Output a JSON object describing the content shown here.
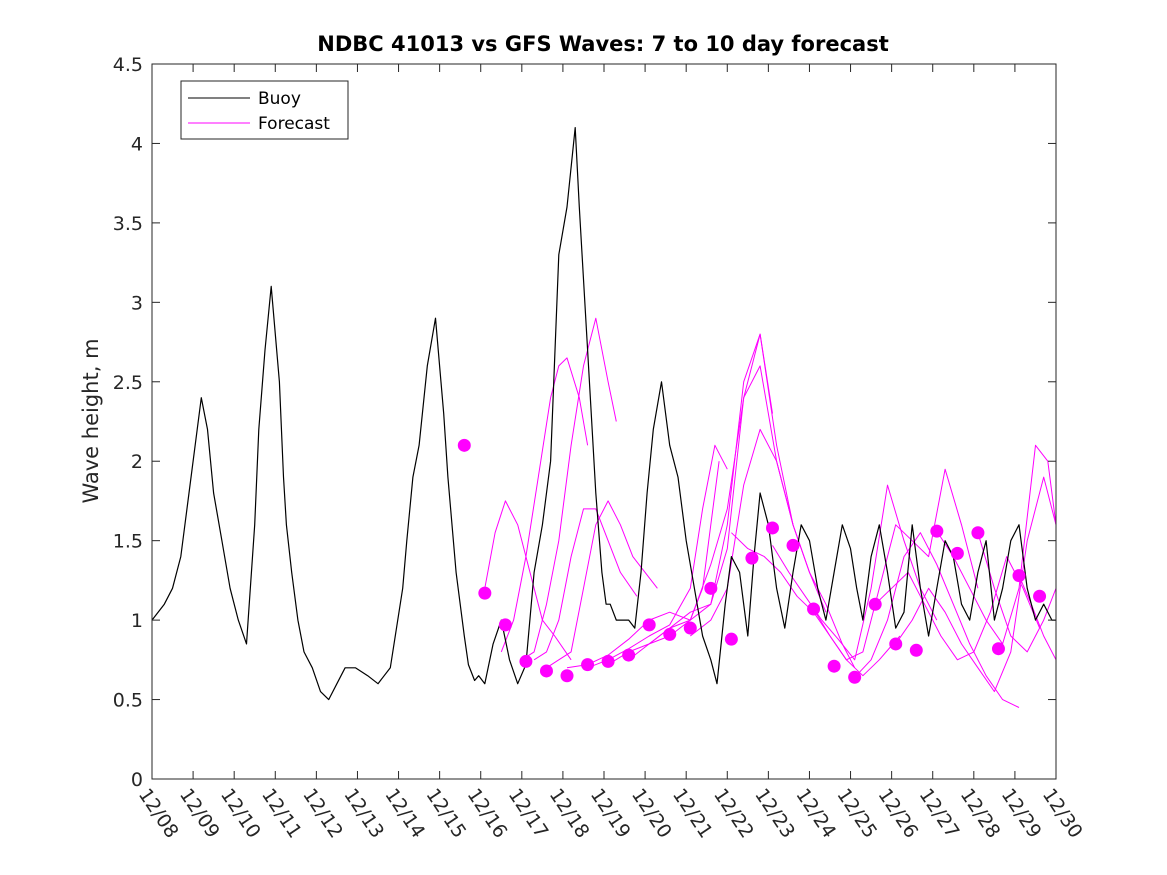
{
  "chart_data": {
    "type": "line",
    "title": "NDBC 41013 vs GFS Waves: 7 to 10 day forecast",
    "xlabel": "",
    "ylabel": "Wave height, m",
    "x_ticks": [
      "12/08",
      "12/09",
      "12/10",
      "12/11",
      "12/12",
      "12/13",
      "12/14",
      "12/15",
      "12/16",
      "12/17",
      "12/18",
      "12/19",
      "12/20",
      "12/21",
      "12/22",
      "12/23",
      "12/24",
      "12/25",
      "12/26",
      "12/27",
      "12/28",
      "12/29",
      "12/30"
    ],
    "xlim": [
      0,
      22
    ],
    "ylim": [
      0,
      4.5
    ],
    "y_ticks": [
      0,
      0.5,
      1,
      1.5,
      2,
      2.5,
      3,
      3.5,
      4,
      4.5
    ],
    "y_tick_labels": [
      "0",
      "0.5",
      "1",
      "1.5",
      "2",
      "2.5",
      "3",
      "3.5",
      "4",
      "4.5"
    ],
    "grid": false,
    "legend": {
      "placement": "top-left",
      "entries": [
        {
          "label": "Buoy",
          "color": "#000000"
        },
        {
          "label": "Forecast",
          "color": "#ff00ff"
        }
      ]
    },
    "series": [
      {
        "name": "Buoy",
        "color": "#000000",
        "x": [
          0,
          0.3,
          0.5,
          0.7,
          0.9,
          1.1,
          1.2,
          1.35,
          1.5,
          1.7,
          1.9,
          2.1,
          2.3,
          2.5,
          2.6,
          2.75,
          2.9,
          3.1,
          3.2,
          3.27,
          3.4,
          3.55,
          3.7,
          3.9,
          4.1,
          4.3,
          4.5,
          4.7,
          4.8,
          4.95,
          5.25,
          5.5,
          5.8,
          6.1,
          6.2,
          6.35,
          6.5,
          6.7,
          6.9,
          7.1,
          7.2,
          7.4,
          7.6,
          7.7,
          7.85,
          7.95,
          8.1,
          8.3,
          8.5,
          8.7,
          8.9,
          9.1,
          9.3,
          9.5,
          9.7,
          9.9,
          10.1,
          10.3,
          10.4,
          10.6,
          10.8,
          10.95,
          11.05,
          11.15,
          11.3,
          11.45,
          11.6,
          11.75,
          11.9,
          12.05,
          12.2,
          12.4,
          12.6,
          12.8,
          13.0,
          13.2,
          13.4,
          13.6,
          13.75,
          13.95,
          14.1,
          14.3,
          14.5,
          14.65,
          14.8,
          15.0,
          15.2,
          15.4,
          15.6,
          15.8,
          16.0,
          16.2,
          16.4,
          16.6,
          16.8,
          17.0,
          17.15,
          17.3,
          17.5,
          17.7,
          17.9,
          18.1,
          18.3,
          18.5,
          18.7,
          18.9,
          19.1,
          19.3,
          19.5,
          19.7,
          19.9,
          20.1,
          20.3,
          20.5,
          20.7,
          20.9,
          21.1,
          21.3,
          21.5,
          21.7,
          21.9,
          22.0
        ],
        "y": [
          1.0,
          1.1,
          1.2,
          1.4,
          1.8,
          2.2,
          2.4,
          2.2,
          1.8,
          1.5,
          1.2,
          1.0,
          0.85,
          1.6,
          2.2,
          2.7,
          3.1,
          2.5,
          1.9,
          1.6,
          1.3,
          1.0,
          0.8,
          0.7,
          0.55,
          0.5,
          0.6,
          0.7,
          0.7,
          0.7,
          0.65,
          0.6,
          0.7,
          1.2,
          1.5,
          1.9,
          2.1,
          2.6,
          2.9,
          2.3,
          1.9,
          1.3,
          0.9,
          0.72,
          0.62,
          0.65,
          0.6,
          0.85,
          1.0,
          0.75,
          0.6,
          0.72,
          1.3,
          1.6,
          2.0,
          3.3,
          3.6,
          4.1,
          3.6,
          2.7,
          1.8,
          1.3,
          1.1,
          1.1,
          1.0,
          1.0,
          1.0,
          0.95,
          1.3,
          1.8,
          2.2,
          2.5,
          2.1,
          1.9,
          1.5,
          1.2,
          0.9,
          0.75,
          0.6,
          1.1,
          1.4,
          1.3,
          0.9,
          1.4,
          1.8,
          1.6,
          1.2,
          0.95,
          1.3,
          1.6,
          1.5,
          1.2,
          1.0,
          1.3,
          1.6,
          1.45,
          1.2,
          1.0,
          1.4,
          1.6,
          1.3,
          0.95,
          1.05,
          1.6,
          1.2,
          0.9,
          1.2,
          1.5,
          1.4,
          1.1,
          1.0,
          1.3,
          1.5,
          1.0,
          1.2,
          1.5,
          1.6,
          1.2,
          1.0,
          1.1,
          1.0,
          1.0
        ]
      }
    ],
    "forecast_lines": [
      {
        "x": [
          8.1,
          8.35,
          8.6,
          8.9,
          9.2,
          9.5,
          9.8,
          10.2
        ],
        "y": [
          1.2,
          1.55,
          1.75,
          1.6,
          1.3,
          1.0,
          0.9,
          0.75
        ]
      },
      {
        "x": [
          8.5,
          8.8,
          9.1,
          9.4,
          9.7,
          9.9,
          10.1,
          10.4,
          10.6
        ],
        "y": [
          0.8,
          1.0,
          1.4,
          1.9,
          2.4,
          2.6,
          2.65,
          2.4,
          2.1
        ]
      },
      {
        "x": [
          9.0,
          9.3,
          9.6,
          9.9,
          10.2,
          10.5,
          10.8,
          11.1,
          11.3
        ],
        "y": [
          0.75,
          0.8,
          1.1,
          1.5,
          2.1,
          2.6,
          2.9,
          2.5,
          2.25
        ]
      },
      {
        "x": [
          9.3,
          9.6,
          9.9,
          10.2,
          10.5,
          10.8,
          11.1,
          11.4,
          11.8
        ],
        "y": [
          0.75,
          0.8,
          1.0,
          1.4,
          1.7,
          1.7,
          1.5,
          1.3,
          1.15
        ]
      },
      {
        "x": [
          9.6,
          9.9,
          10.2,
          10.5,
          10.8,
          11.1,
          11.4,
          11.7,
          12.0,
          12.3
        ],
        "y": [
          0.7,
          0.75,
          0.8,
          1.2,
          1.6,
          1.75,
          1.6,
          1.4,
          1.3,
          1.2
        ]
      },
      {
        "x": [
          10.1,
          10.6,
          11.1,
          11.6,
          12.1,
          12.6,
          13.1,
          13.4,
          13.6,
          13.8
        ],
        "y": [
          0.7,
          0.72,
          0.78,
          0.88,
          1.0,
          1.05,
          1.0,
          1.2,
          1.6,
          2.0
        ]
      },
      {
        "x": [
          10.6,
          11.1,
          11.6,
          12.1,
          12.6,
          13.1,
          13.4,
          13.7,
          14.0
        ],
        "y": [
          0.7,
          0.75,
          0.82,
          0.9,
          0.97,
          1.2,
          1.7,
          2.1,
          1.95
        ]
      },
      {
        "x": [
          11.1,
          11.6,
          12.1,
          12.6,
          13.1,
          13.6,
          14.0,
          14.4,
          14.8,
          15.1
        ],
        "y": [
          0.72,
          0.8,
          0.85,
          0.95,
          1.05,
          1.1,
          1.6,
          2.5,
          2.8,
          2.3
        ]
      },
      {
        "x": [
          11.6,
          12.1,
          12.6,
          13.1,
          13.6,
          14.0,
          14.4,
          14.8,
          15.2,
          15.6
        ],
        "y": [
          0.75,
          0.85,
          0.9,
          1.0,
          1.35,
          1.7,
          2.4,
          2.8,
          2.1,
          1.6
        ]
      },
      {
        "x": [
          12.1,
          12.6,
          13.1,
          13.6,
          14.0,
          14.4,
          14.8,
          15.2,
          15.6,
          16.0,
          16.4
        ],
        "y": [
          0.85,
          0.95,
          1.0,
          1.1,
          1.45,
          2.4,
          2.6,
          2.0,
          1.6,
          1.3,
          1.05
        ]
      },
      {
        "x": [
          13.1,
          13.6,
          14.0,
          14.4,
          14.8,
          15.2,
          15.6,
          16.0,
          16.4,
          16.8,
          17.1
        ],
        "y": [
          0.9,
          1.0,
          1.2,
          1.85,
          2.2,
          2.0,
          1.6,
          1.3,
          1.1,
          0.85,
          0.7
        ]
      },
      {
        "x": [
          14.1,
          14.5,
          14.9,
          15.3,
          15.7,
          16.1,
          16.5,
          16.9,
          17.3,
          17.7,
          18.2
        ],
        "y": [
          1.55,
          1.45,
          1.4,
          1.3,
          1.15,
          1.05,
          0.9,
          0.75,
          0.65,
          0.75,
          0.9
        ]
      },
      {
        "x": [
          15.1,
          15.5,
          15.9,
          16.3,
          16.7,
          17.1,
          17.5,
          17.9,
          18.3,
          18.7,
          19.1
        ],
        "y": [
          1.47,
          1.3,
          1.15,
          1.0,
          0.88,
          0.75,
          1.2,
          1.85,
          1.5,
          1.2,
          1.0
        ]
      },
      {
        "x": [
          16.1,
          16.5,
          16.9,
          17.3,
          17.7,
          18.1,
          18.5,
          18.9,
          19.3,
          19.7,
          20.1
        ],
        "y": [
          1.07,
          0.9,
          0.75,
          0.8,
          1.2,
          1.6,
          1.5,
          1.4,
          1.95,
          1.6,
          1.2
        ]
      },
      {
        "x": [
          17.1,
          17.5,
          17.9,
          18.3,
          18.7,
          19.1,
          19.5,
          19.9,
          20.3,
          20.7,
          21.1
        ],
        "y": [
          0.64,
          0.75,
          1.0,
          1.4,
          1.55,
          1.35,
          1.1,
          0.85,
          0.65,
          0.5,
          0.45
        ]
      },
      {
        "x": [
          17.6,
          18.0,
          18.4,
          18.8,
          19.2,
          19.6,
          20.0,
          20.4,
          20.8,
          21.2,
          21.6
        ],
        "y": [
          1.1,
          1.2,
          1.3,
          1.1,
          0.9,
          0.75,
          0.8,
          1.05,
          1.4,
          1.2,
          0.95
        ]
      },
      {
        "x": [
          18.1,
          18.5,
          18.9,
          19.3,
          19.7,
          20.1,
          20.5,
          20.9,
          21.3,
          21.7,
          22.0
        ],
        "y": [
          0.85,
          1.0,
          1.2,
          1.05,
          0.85,
          0.7,
          0.55,
          0.8,
          1.5,
          1.9,
          1.6
        ]
      },
      {
        "x": [
          19.1,
          19.5,
          19.9,
          20.3,
          20.7,
          21.1,
          21.5,
          21.8,
          22.0
        ],
        "y": [
          1.56,
          1.4,
          1.2,
          1.0,
          0.85,
          1.2,
          2.1,
          2.0,
          1.6
        ]
      },
      {
        "x": [
          20.1,
          20.5,
          20.9,
          21.3,
          21.7,
          22.0
        ],
        "y": [
          1.55,
          1.2,
          0.9,
          0.8,
          1.0,
          1.2
        ]
      },
      {
        "x": [
          21.1,
          21.4,
          21.7,
          22.0
        ],
        "y": [
          1.28,
          1.1,
          0.9,
          0.75
        ]
      }
    ],
    "forecast_points": {
      "x": [
        7.6,
        8.1,
        8.6,
        9.1,
        9.6,
        10.1,
        10.6,
        11.1,
        11.6,
        12.1,
        12.6,
        13.1,
        13.6,
        14.1,
        14.6,
        15.1,
        15.6,
        16.1,
        16.6,
        17.1,
        17.6,
        18.1,
        18.6,
        19.1,
        19.6,
        20.1,
        20.6,
        21.1,
        21.6
      ],
      "y": [
        2.1,
        1.17,
        0.97,
        0.74,
        0.68,
        0.65,
        0.72,
        0.74,
        0.78,
        0.97,
        0.91,
        0.95,
        1.2,
        0.88,
        1.39,
        1.58,
        1.47,
        1.07,
        0.71,
        0.64,
        1.1,
        0.85,
        0.81,
        1.56,
        1.42,
        1.55,
        0.82,
        1.28,
        1.15
      ]
    }
  }
}
